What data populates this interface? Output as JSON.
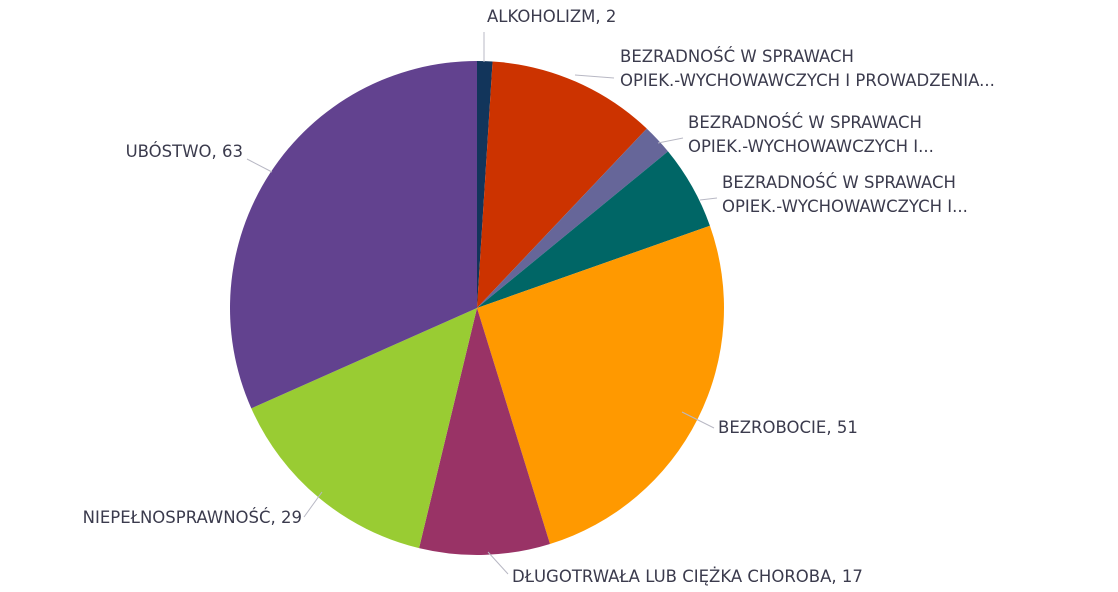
{
  "chart_data": {
    "type": "pie",
    "categories": [
      "ALKOHOLIZM, 2",
      "BEZRADNOŚĆ W SPRAWACH\nOPIEK.-WYCHOWAWCZYCH I PROWADZENIA...",
      "BEZRADNOŚĆ W SPRAWACH\nOPIEK.-WYCHOWAWCZYCH I...",
      "BEZRADNOŚĆ W SPRAWACH\nOPIEK.-WYCHOWAWCZYCH I...",
      "BEZROBOCIE, 51",
      "DŁUGOTRWAŁA LUB CIĘŻKA CHOROBA, 17",
      "NIEPEŁNOSPRAWNOŚĆ, 29",
      "UBÓSTWO, 63"
    ],
    "values": [
      2,
      22,
      4,
      11,
      51,
      17,
      29,
      63
    ],
    "colors": [
      "#12355b",
      "#cc3300",
      "#666699",
      "#006666",
      "#ff9900",
      "#993366",
      "#99cc33",
      "#62428f"
    ]
  }
}
